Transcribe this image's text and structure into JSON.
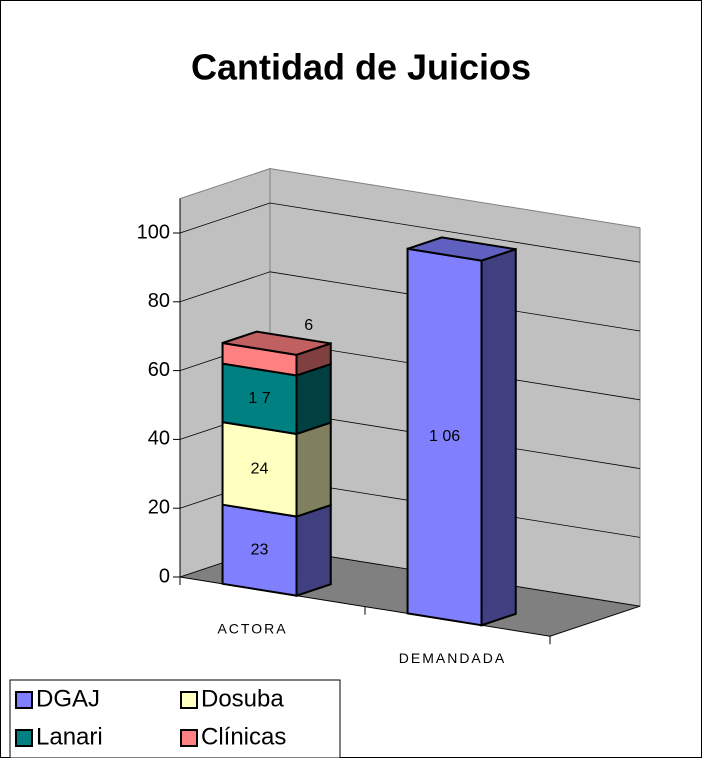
{
  "chart_data": {
    "type": "bar3d_stacked",
    "title": "Cantidad de Juicios",
    "categories": [
      "ACTORA",
      "DEMANDADA"
    ],
    "series": [
      {
        "name": "DGAJ",
        "color": "#8080ff",
        "values": [
          23,
          106
        ],
        "value_labels": [
          "23",
          "1 06"
        ]
      },
      {
        "name": "Dosuba",
        "color": "#ffffc0",
        "values": [
          24,
          null
        ]
      },
      {
        "name": "Lanari",
        "color": "#008080",
        "values": [
          17,
          null
        ],
        "value_labels": [
          "1 7",
          null
        ]
      },
      {
        "name": "Clínicas",
        "color": "#ff8080",
        "values": [
          6,
          null
        ]
      }
    ],
    "ylim": [
      0,
      110
    ],
    "yticks": [
      0,
      20,
      40,
      60,
      80,
      100
    ],
    "grid": true,
    "legend": "bottom-left"
  }
}
